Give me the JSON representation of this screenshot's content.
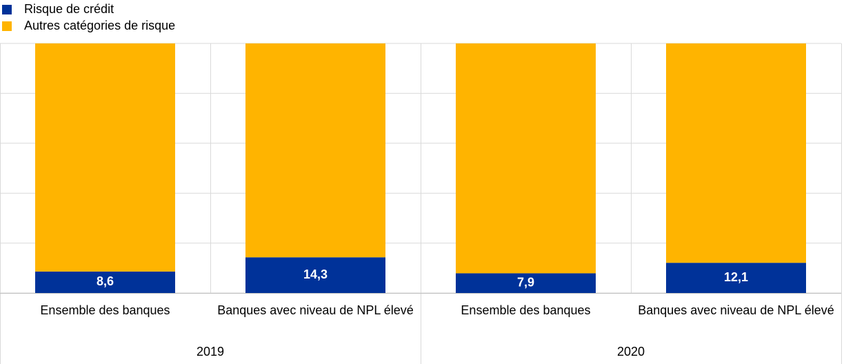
{
  "chart_data": {
    "type": "stacked-bar",
    "groups": [
      {
        "name": "2019",
        "categories": [
          "Ensemble des banques",
          "Banques avec niveau de NPL élevé"
        ]
      },
      {
        "name": "2020",
        "categories": [
          "Ensemble des banques",
          "Banques avec niveau de NPL élevé"
        ]
      }
    ],
    "series": [
      {
        "name": "Risque de crédit",
        "color": "#003299",
        "values": [
          8.6,
          14.3,
          7.9,
          12.1
        ],
        "value_labels": [
          "8,6",
          "14,3",
          "7,9",
          "12,1"
        ]
      },
      {
        "name": "Autres catégories de risque",
        "color": "#ffb400",
        "values": [
          91.4,
          85.7,
          92.1,
          87.9
        ]
      }
    ],
    "ylim": [
      0,
      100
    ],
    "yticks": [
      0,
      20,
      40,
      60,
      80,
      100
    ],
    "grid": true,
    "legend": "top-left"
  }
}
